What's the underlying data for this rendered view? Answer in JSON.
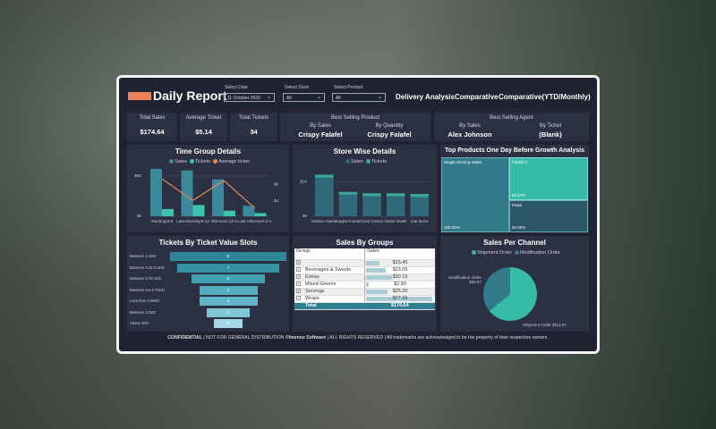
{
  "header": {
    "logo_text": "Daily",
    "title": "Daily Report",
    "filters": [
      {
        "label": "Select Date",
        "value": "11 October 2020"
      },
      {
        "label": "Select Store",
        "value": "All"
      },
      {
        "label": "Select Product",
        "value": "All"
      }
    ],
    "nav": [
      "Delivery Analysis",
      "Comparative",
      "Comparative(YTD/Monthly)"
    ]
  },
  "kpis": [
    {
      "label": "Total Sales",
      "value": "$174.64"
    },
    {
      "label": "Average Ticket",
      "value": "$5.14"
    },
    {
      "label": "Total Tickets",
      "value": "34"
    }
  ],
  "best_product": {
    "title": "Best Selling Product",
    "by_sales_label": "By Sales",
    "by_sales": "Crispy  Falafel",
    "by_qty_label": "By Quantity",
    "by_qty": "Crispy  Falafel"
  },
  "best_agent": {
    "title": "Best Selling Agent",
    "by_sales_label": "By Sales",
    "by_sales": "Alex Johnson",
    "by_ticket_label": "By Ticket",
    "by_ticket": "(Blank)"
  },
  "chart_data": [
    {
      "type": "bar",
      "title": "Time Group Details",
      "legend": [
        "Sales",
        "Tickets",
        "Average ticket"
      ],
      "categories": [
        "Morning:6-9",
        "Late Morning:9-12",
        "Afternoon:12-2",
        "Late Afternoon:2-4"
      ],
      "series": [
        {
          "name": "Sales",
          "values": [
            59,
            57,
            46,
            13
          ]
        },
        {
          "name": "Tickets",
          "values": [
            9,
            14,
            7,
            4
          ]
        },
        {
          "name": "Average ticket",
          "type": "line",
          "values": [
            6.7,
            4.1,
            6.5,
            3.2
          ]
        }
      ],
      "left_ticks": [
        "$0",
        "$50"
      ],
      "right_ticks": [
        "$4",
        "$6"
      ],
      "ylim": [
        0,
        60
      ],
      "y2lim": [
        2.2,
        8
      ]
    },
    {
      "type": "bar",
      "title": "Store Wise Details",
      "legend": [
        "Sales",
        "Tickets"
      ],
      "categories": [
        "Harbor Haven",
        "Kappa Korner",
        "Crest Corner",
        "Oasis Outlet",
        "Iota Items"
      ],
      "series": [
        {
          "name": "Sales",
          "values": [
            11.2,
            6.3,
            5.8,
            5.8,
            5.6
          ]
        },
        {
          "name": "Tickets",
          "values": [
            0.9,
            0.8,
            0.9,
            0.9,
            0.9
          ]
        }
      ],
      "ticks": [
        "$0",
        "$10"
      ],
      "ylim": [
        0,
        13
      ]
    },
    {
      "type": "treemap",
      "title": "Top Products One Day Before Growth Analysis",
      "items": [
        {
          "name": "Single-Serving Water",
          "value": "100.00%"
        },
        {
          "name": "Falafel 2",
          "value": "66.67%"
        },
        {
          "name": "Pepsi",
          "value": "50.00%"
        }
      ]
    },
    {
      "type": "bar",
      "title": "Tickets By Ticket Value Slots",
      "categories": [
        "Between 1-2KD",
        "Between 0.25-0.5KD",
        "Between 0.75-1KD",
        "Between 0.5-0.75KD",
        "Less than 0.25KD",
        "Between 2-3KD",
        "Above 3KD"
      ],
      "values": [
        8,
        7,
        5,
        4,
        4,
        3,
        2
      ]
    },
    {
      "type": "pie",
      "title": "Sales Per Channel",
      "legend": [
        "Shipment Order",
        "Modification Order"
      ],
      "slices": [
        {
          "name": "Shipment Order",
          "value": 111.97,
          "label": "Shipment Order $111.97"
        },
        {
          "name": "Modification Order",
          "value": 62.67,
          "label_name": "Modification Order",
          "label_value": "$62.67"
        }
      ]
    }
  ],
  "sales_by_groups": {
    "title": "Sales By Groups",
    "headers": [
      "Group",
      "Sales"
    ],
    "rows": [
      {
        "group": "",
        "sales": "$15.45",
        "v": 15.45
      },
      {
        "group": "Beverages & Sweets",
        "sales": "$23.05",
        "v": 23.05
      },
      {
        "group": "Extras",
        "sales": "$30.15",
        "v": 30.15
      },
      {
        "group": "Mixed Greens",
        "sales": "$2.80",
        "v": 2.8
      },
      {
        "group": "Servings",
        "sales": "$25.20",
        "v": 25.2
      },
      {
        "group": "Wraps",
        "sales": "$77.99",
        "v": 77.99
      }
    ],
    "total_label": "Total",
    "total": "$174.64"
  },
  "footer": {
    "bold": "CONFIDENTIAL",
    "text": " | NOT FOR GENERAL DISTRIBUTION ",
    "brand": "©Imenso Software",
    "rest": " | ALL RIGHTS RESERVED | All trademarks are acknowledged to be the property of their respective owners."
  },
  "colors": {
    "sales": "#3a8a9c",
    "tickets": "#3cc4ac",
    "avg": "#e08a55",
    "bg": "#1f2332",
    "panel": "#2b3043"
  }
}
